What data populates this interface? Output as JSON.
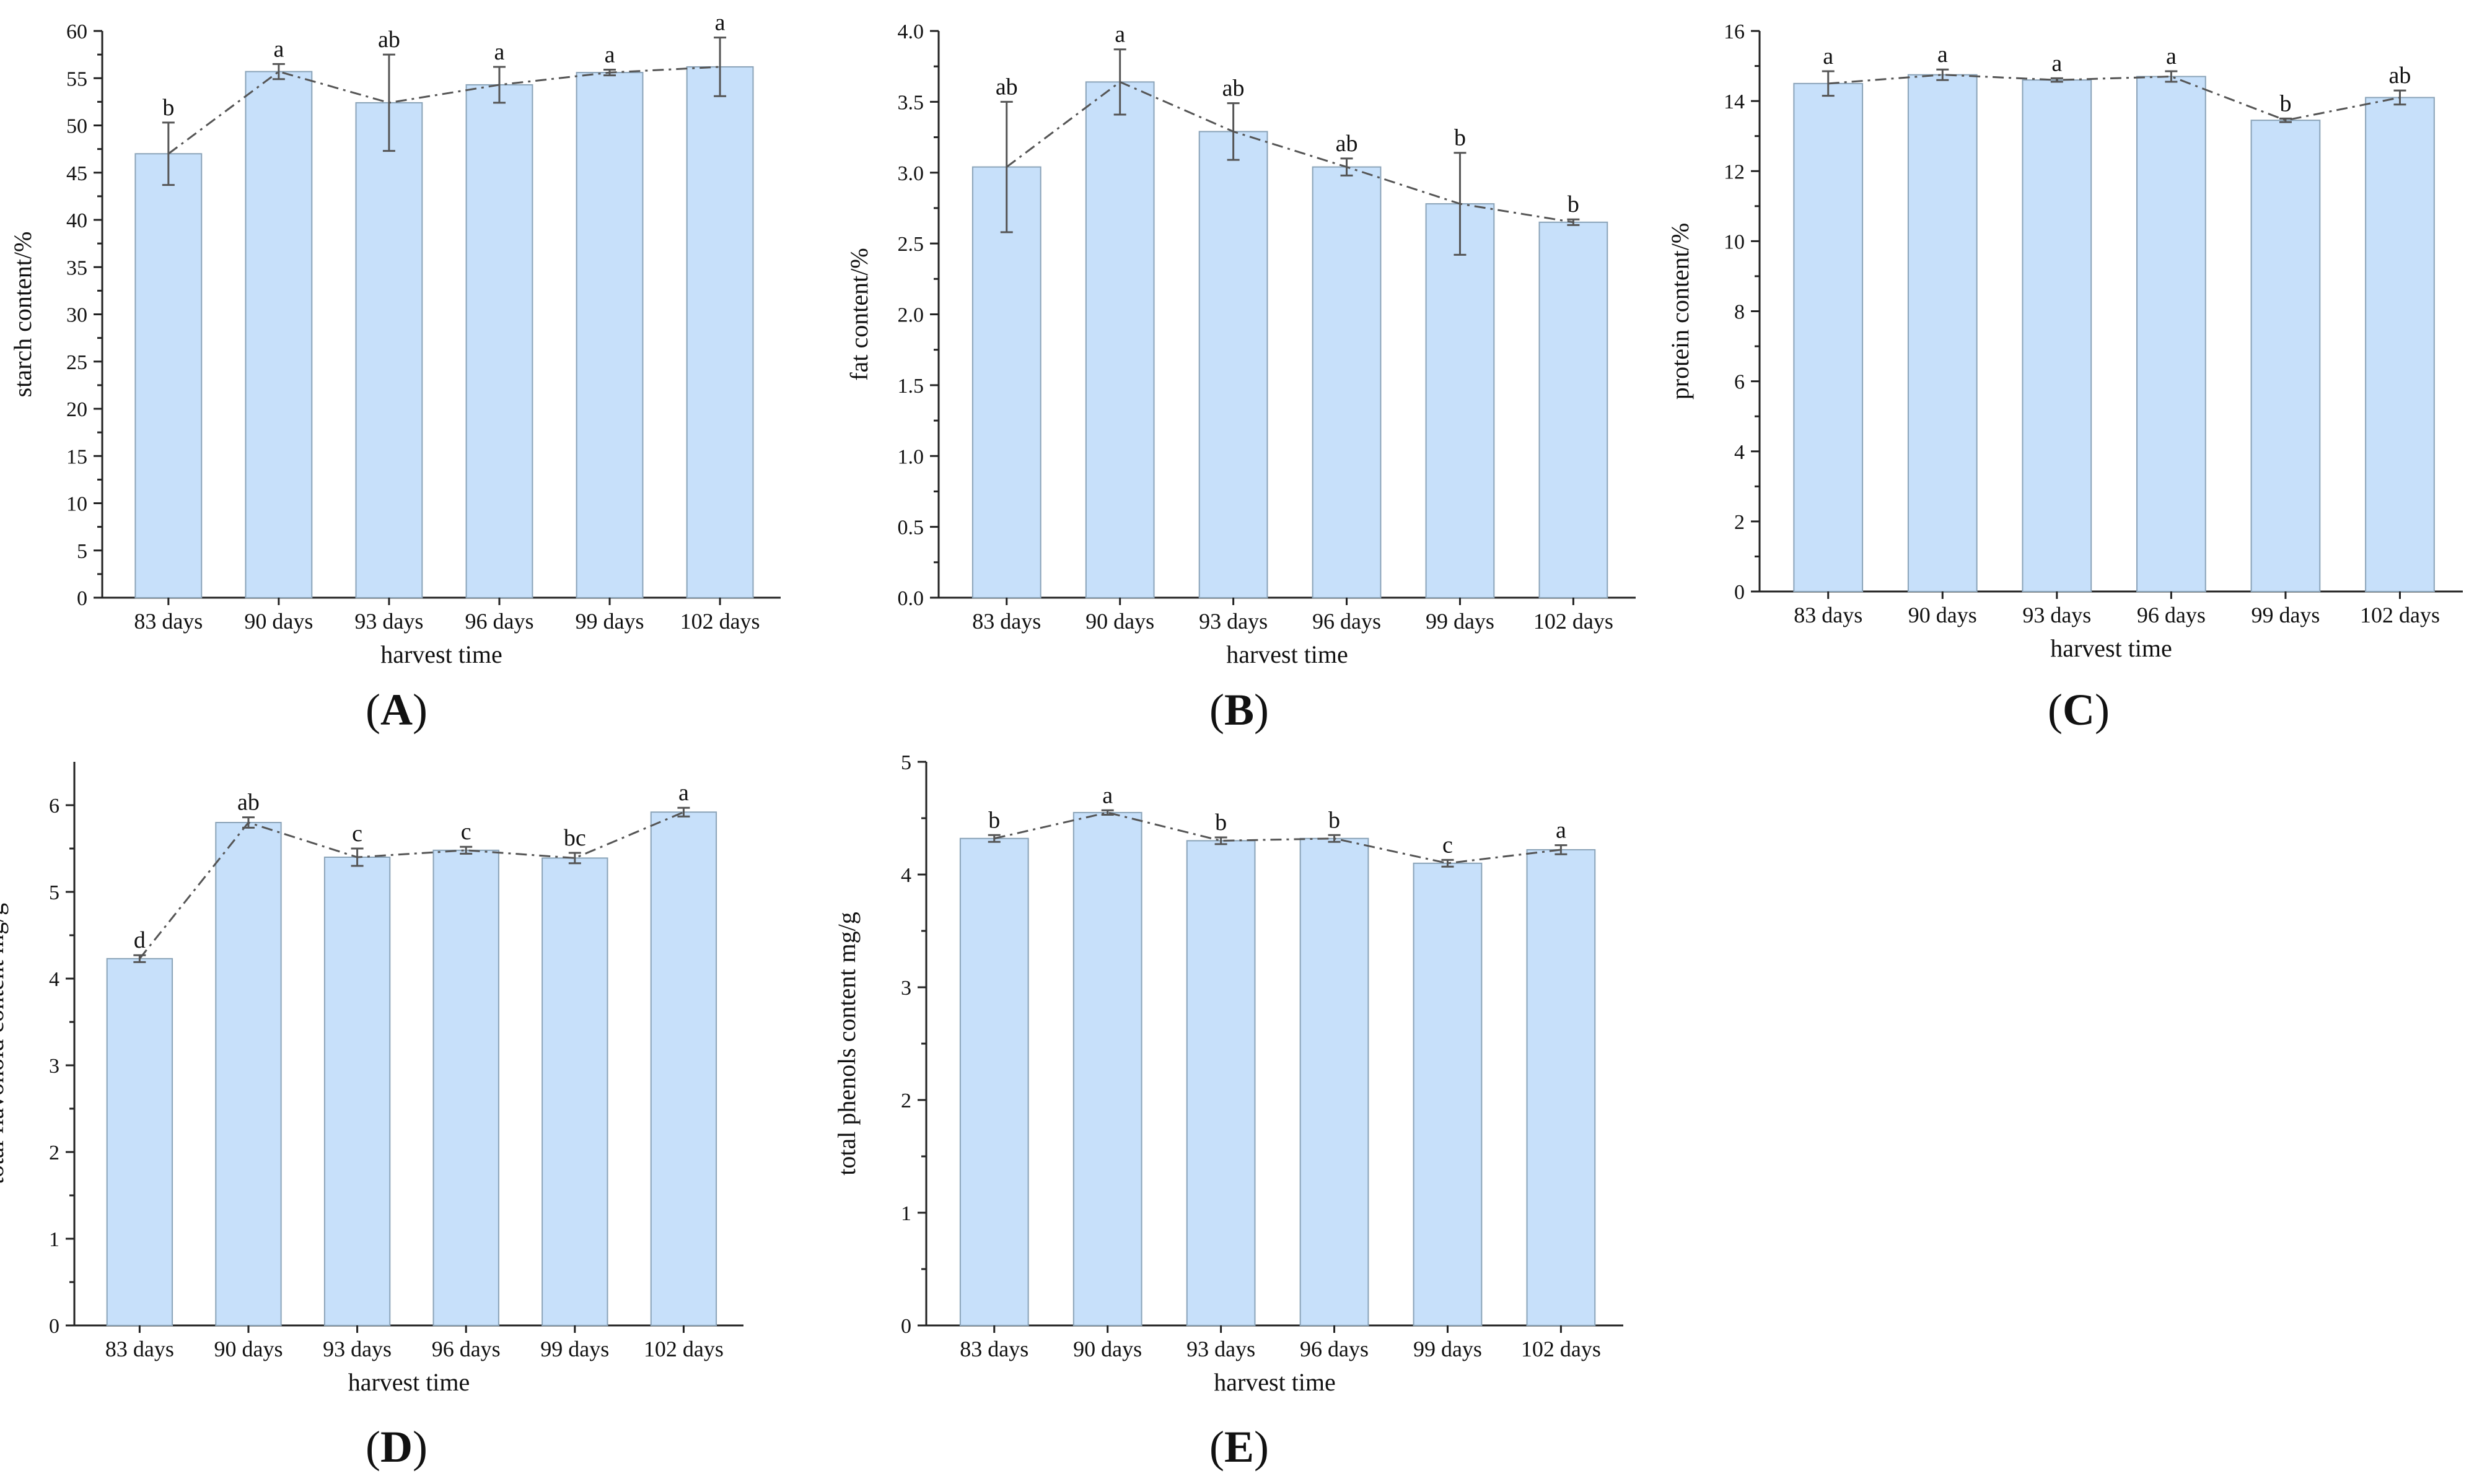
{
  "chart_data": [
    {
      "type": "bar",
      "panel": "A",
      "categories": [
        "83 days",
        "90 days",
        "93 days",
        "96 days",
        "99 days",
        "102 days"
      ],
      "values": [
        47.0,
        55.7,
        52.4,
        54.3,
        55.6,
        56.2
      ],
      "errors": [
        3.3,
        0.8,
        5.1,
        1.9,
        0.3,
        3.1
      ],
      "letters": [
        "b",
        "a",
        "ab",
        "a",
        "a",
        "a"
      ],
      "xlabel": "harvest time",
      "ylabel": "starch content/%",
      "ylim": [
        0,
        60
      ],
      "yticks": [
        "0",
        "5",
        "10",
        "15",
        "20",
        "25",
        "30",
        "35",
        "40",
        "45",
        "50",
        "55",
        "60"
      ],
      "trend_line": "dash-dot"
    },
    {
      "type": "bar",
      "panel": "B",
      "categories": [
        "83 days",
        "90 days",
        "93 days",
        "96 days",
        "99 days",
        "102 days"
      ],
      "values": [
        3.04,
        3.64,
        3.29,
        3.04,
        2.78,
        2.65
      ],
      "errors": [
        0.46,
        0.23,
        0.2,
        0.06,
        0.36,
        0.02
      ],
      "letters": [
        "ab",
        "a",
        "ab",
        "ab",
        "b",
        "b"
      ],
      "xlabel": "harvest time",
      "ylabel": "fat content/%",
      "ylim": [
        0,
        4
      ],
      "yticks": [
        "0.0",
        "0.5",
        "1.0",
        "1.5",
        "2.0",
        "2.5",
        "3.0",
        "3.5",
        "4.0"
      ],
      "trend_line": "dash-dot"
    },
    {
      "type": "bar",
      "panel": "C",
      "categories": [
        "83 days",
        "90 days",
        "93 days",
        "96 days",
        "99 days",
        "102 days"
      ],
      "values": [
        14.5,
        14.75,
        14.6,
        14.7,
        13.45,
        14.1
      ],
      "errors": [
        0.35,
        0.15,
        0.05,
        0.15,
        0.05,
        0.2
      ],
      "letters": [
        "a",
        "a",
        "a",
        "a",
        "b",
        "ab"
      ],
      "xlabel": "harvest time",
      "ylabel": "protein content/%",
      "ylim": [
        0,
        16
      ],
      "yticks": [
        "0",
        "2",
        "4",
        "6",
        "8",
        "10",
        "12",
        "14",
        "16"
      ],
      "trend_line": "dash-dot"
    },
    {
      "type": "bar",
      "panel": "D",
      "categories": [
        "83 days",
        "90 days",
        "93 days",
        "96 days",
        "99 days",
        "102 days"
      ],
      "values": [
        4.23,
        5.8,
        5.4,
        5.48,
        5.39,
        5.92
      ],
      "errors": [
        0.04,
        0.06,
        0.1,
        0.04,
        0.06,
        0.05
      ],
      "letters": [
        "d",
        "ab",
        "c",
        "c",
        "bc",
        "a"
      ],
      "xlabel": "harvest time",
      "ylabel": "total flavonoid content mg/g",
      "ylim": [
        0,
        6.5
      ],
      "yticks": [
        "0",
        "1",
        "2",
        "3",
        "4",
        "5",
        "6"
      ],
      "trend_line": "dash-dot"
    },
    {
      "type": "bar",
      "panel": "E",
      "categories": [
        "83 days",
        "90 days",
        "93 days",
        "96 days",
        "99 days",
        "102 days"
      ],
      "values": [
        4.32,
        4.55,
        4.3,
        4.32,
        4.1,
        4.22
      ],
      "errors": [
        0.03,
        0.02,
        0.03,
        0.03,
        0.03,
        0.04
      ],
      "letters": [
        "b",
        "a",
        "b",
        "b",
        "c",
        "a"
      ],
      "xlabel": "harvest time",
      "ylabel": "total phenols content  mg/g",
      "ylim": [
        0,
        5
      ],
      "yticks": [
        "0",
        "1",
        "2",
        "3",
        "4",
        "5"
      ],
      "trend_line": "dash-dot"
    }
  ]
}
